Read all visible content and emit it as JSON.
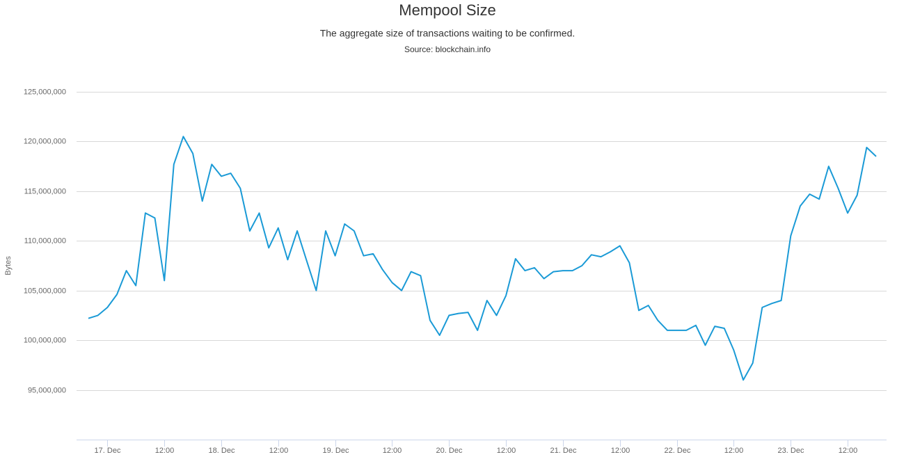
{
  "chart_data": {
    "type": "line",
    "title": "Mempool Size",
    "subtitle": "The aggregate size of transactions waiting to be confirmed.",
    "source": "Source: blockchain.info",
    "y_label": "Bytes",
    "color": "#1a9ad6",
    "grid": true,
    "x": [
      -4,
      -2,
      0,
      2,
      4,
      6,
      8,
      10,
      12,
      14,
      16,
      18,
      20,
      22,
      24,
      26,
      28,
      30,
      32,
      34,
      36,
      38,
      40,
      42,
      44,
      46,
      48,
      50,
      52,
      54,
      56,
      58,
      60,
      62,
      64,
      66,
      68,
      70,
      72,
      74,
      76,
      78,
      80,
      82,
      84,
      86,
      88,
      90,
      92,
      94,
      96,
      98,
      100,
      102,
      104,
      106,
      108,
      110,
      112,
      114,
      116,
      118,
      120,
      122,
      124,
      126,
      128,
      130,
      132,
      134,
      136,
      138,
      140,
      142,
      144,
      146,
      148,
      150,
      152,
      154,
      156,
      158,
      160,
      162
    ],
    "values": [
      102200000,
      102500000,
      103300000,
      104600000,
      107000000,
      105500000,
      112800000,
      112300000,
      106000000,
      117700000,
      120500000,
      118800000,
      114000000,
      117700000,
      116500000,
      116800000,
      115300000,
      111000000,
      112800000,
      109300000,
      111300000,
      108100000,
      111000000,
      108000000,
      105000000,
      111000000,
      108500000,
      111700000,
      111000000,
      108500000,
      108700000,
      107100000,
      105800000,
      105000000,
      106900000,
      106500000,
      102000000,
      100500000,
      102500000,
      102700000,
      102800000,
      101000000,
      104000000,
      102500000,
      104500000,
      108200000,
      107000000,
      107300000,
      106200000,
      106900000,
      107000000,
      107000000,
      107500000,
      108600000,
      108400000,
      108900000,
      109500000,
      107800000,
      103000000,
      103500000,
      102000000,
      101000000,
      101000000,
      101000000,
      101500000,
      99500000,
      101400000,
      101200000,
      99000000,
      96000000,
      97700000,
      103300000,
      103700000,
      104000000,
      110500000,
      113500000,
      114700000,
      114200000,
      117500000,
      115300000,
      112800000,
      114600000,
      119400000,
      118500000
    ],
    "xlim": [
      -6.5,
      164.2
    ],
    "xticks": [
      {
        "value": 0,
        "label": "17. Dec"
      },
      {
        "value": 12,
        "label": "12:00"
      },
      {
        "value": 24,
        "label": "18. Dec"
      },
      {
        "value": 36,
        "label": "12:00"
      },
      {
        "value": 48,
        "label": "19. Dec"
      },
      {
        "value": 60,
        "label": "12:00"
      },
      {
        "value": 72,
        "label": "20. Dec"
      },
      {
        "value": 84,
        "label": "12:00"
      },
      {
        "value": 96,
        "label": "21. Dec"
      },
      {
        "value": 108,
        "label": "12:00"
      },
      {
        "value": 120,
        "label": "22. Dec"
      },
      {
        "value": 132,
        "label": "12:00"
      },
      {
        "value": 144,
        "label": "23. Dec"
      },
      {
        "value": 156,
        "label": "12:00"
      }
    ],
    "ylim": [
      90000000,
      125000000
    ],
    "yticks": [
      {
        "value": 95000000,
        "label": "95,000,000"
      },
      {
        "value": 100000000,
        "label": "100,000,000"
      },
      {
        "value": 105000000,
        "label": "105,000,000"
      },
      {
        "value": 110000000,
        "label": "110,000,000"
      },
      {
        "value": 115000000,
        "label": "115,000,000"
      },
      {
        "value": 120000000,
        "label": "120,000,000"
      },
      {
        "value": 125000000,
        "label": "125,000,000"
      }
    ]
  }
}
